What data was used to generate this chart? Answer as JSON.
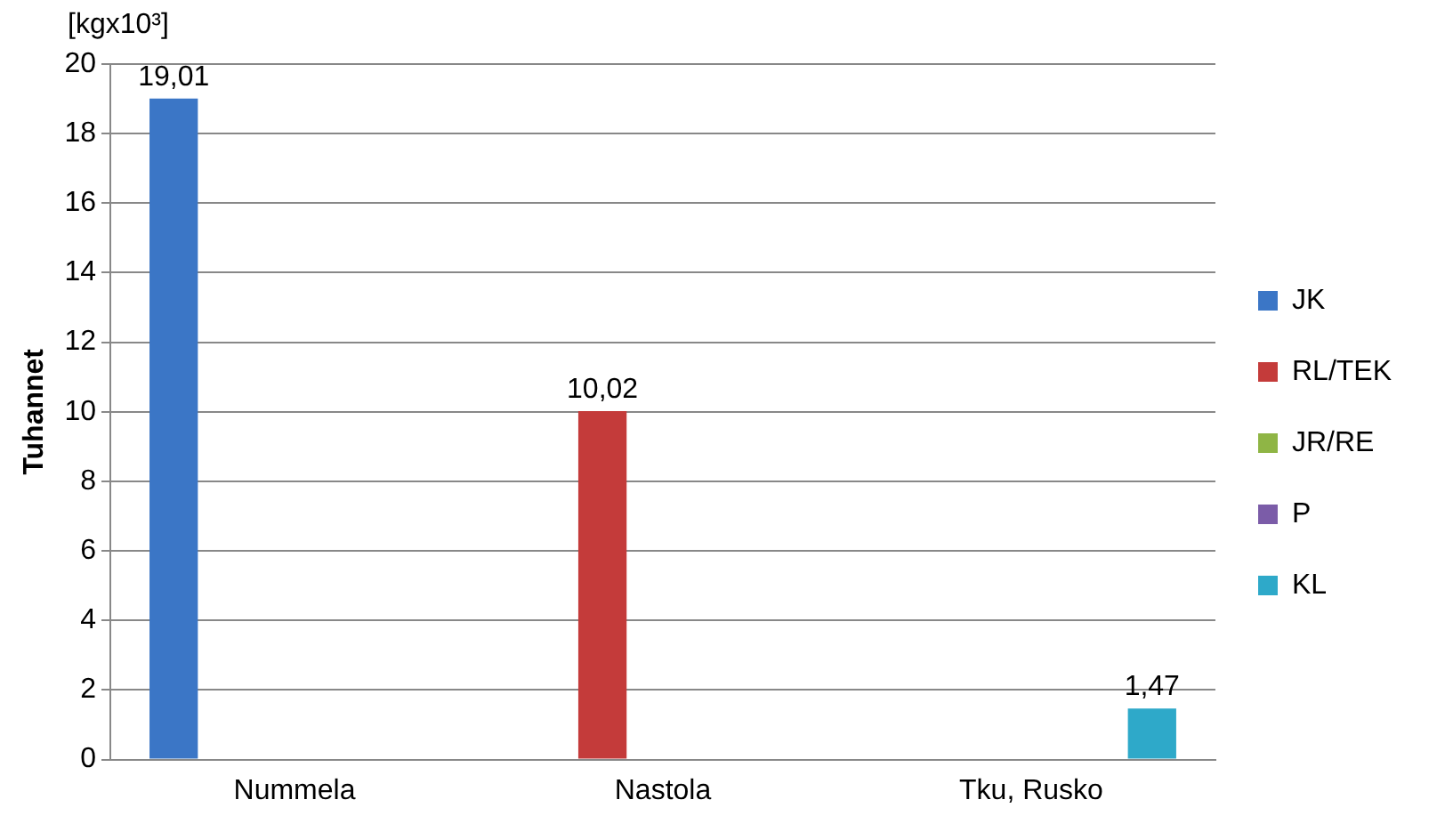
{
  "chart_data": {
    "type": "bar",
    "ylabel": "Tuhannet",
    "annotations": [
      "[kgx10³]"
    ],
    "categories": [
      "Nummela",
      "Nastola",
      "Tku, Rusko"
    ],
    "series": [
      {
        "name": "JK",
        "color": "#3b76c6",
        "values": [
          19.01,
          null,
          null
        ],
        "value_labels": [
          "19,01",
          null,
          null
        ]
      },
      {
        "name": "RL/TEK",
        "color": "#c43b3a",
        "values": [
          null,
          10.02,
          null
        ],
        "value_labels": [
          null,
          "10,02",
          null
        ]
      },
      {
        "name": "JR/RE",
        "color": "#8fb545",
        "values": [
          null,
          null,
          null
        ]
      },
      {
        "name": "P",
        "color": "#7b5ca8",
        "values": [
          null,
          null,
          null
        ]
      },
      {
        "name": "KL",
        "color": "#2ea9c9",
        "values": [
          null,
          null,
          1.47
        ],
        "value_labels": [
          null,
          null,
          "1,47"
        ]
      }
    ],
    "ylim": [
      0,
      20
    ],
    "yticks": [
      0,
      2,
      4,
      6,
      8,
      10,
      12,
      14,
      16,
      18,
      20
    ],
    "grid": "y",
    "legend": "right"
  }
}
